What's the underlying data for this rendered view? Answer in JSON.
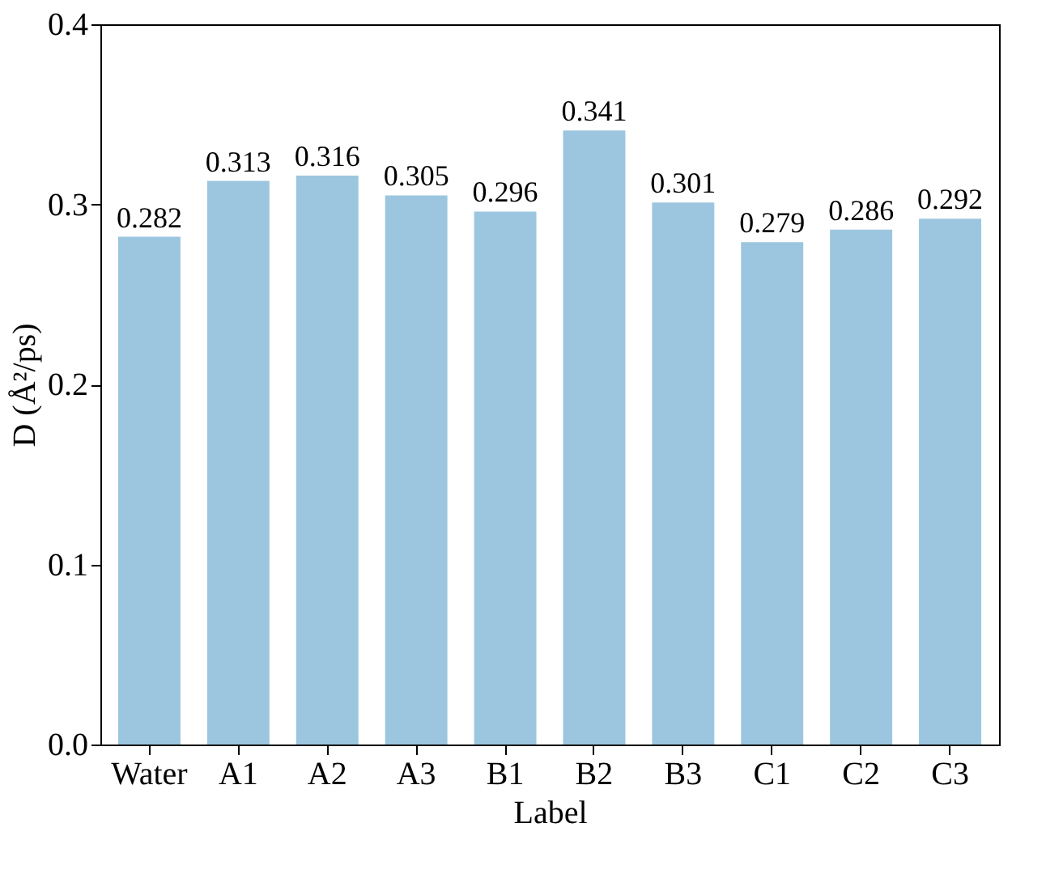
{
  "chart_data": {
    "type": "bar",
    "xlabel": "Label",
    "ylabel": "D (Å²/ps)",
    "categories": [
      "Water",
      "A1",
      "A2",
      "A3",
      "B1",
      "B2",
      "B3",
      "C1",
      "C2",
      "C3"
    ],
    "values": [
      0.282,
      0.313,
      0.316,
      0.305,
      0.296,
      0.341,
      0.301,
      0.279,
      0.286,
      0.292
    ],
    "color": "#9cc6df",
    "ylim": [
      0,
      0.4
    ],
    "yticks": [
      {
        "value": 0,
        "label": "0.0"
      },
      {
        "value": 0.1,
        "label": "0.1"
      },
      {
        "value": 0.2,
        "label": "0.2"
      },
      {
        "value": 0.3,
        "label": "0.3"
      },
      {
        "value": 0.4,
        "label": "0.4"
      }
    ],
    "data_labels": true,
    "grid": false
  }
}
